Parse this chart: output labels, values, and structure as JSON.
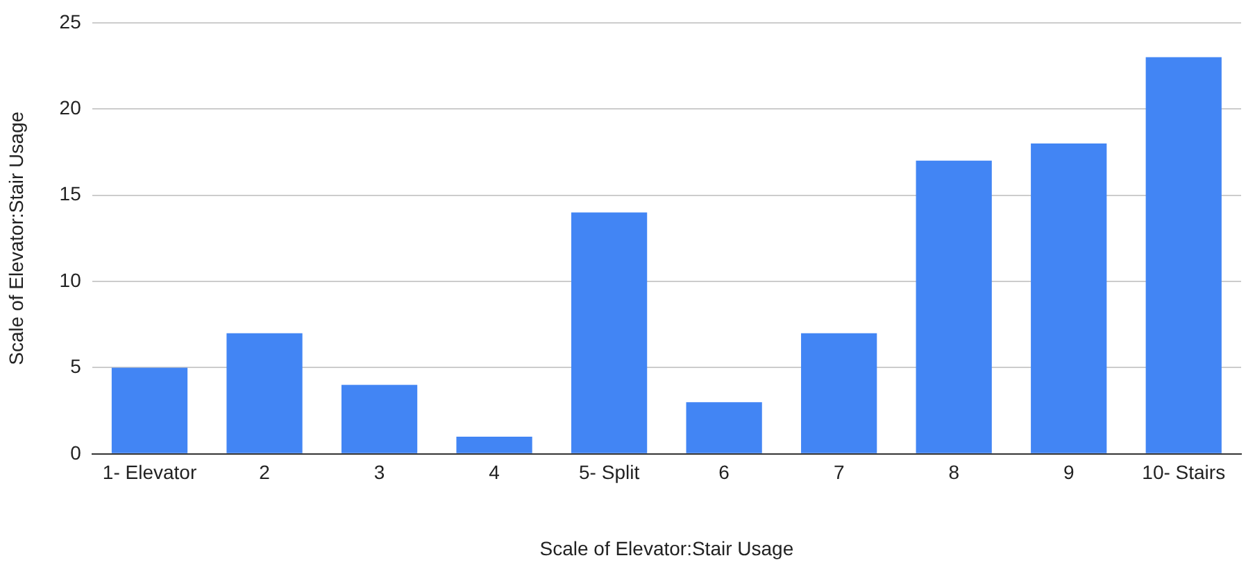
{
  "chart_data": {
    "type": "bar",
    "xlabel": "Scale of Elevator:Stair Usage",
    "ylabel": "Scale of Elevator:Stair Usage",
    "categories": [
      "1- Elevator",
      "2",
      "3",
      "4",
      "5- Split",
      "6",
      "7",
      "8",
      "9",
      "10- Stairs"
    ],
    "values": [
      5,
      7,
      4,
      1,
      14,
      3,
      7,
      17,
      18,
      23
    ],
    "color": "#4285f4",
    "ylim": [
      0,
      25
    ],
    "yticks": [
      0,
      5,
      10,
      15,
      20,
      25
    ],
    "grid": "y",
    "legend": false
  }
}
